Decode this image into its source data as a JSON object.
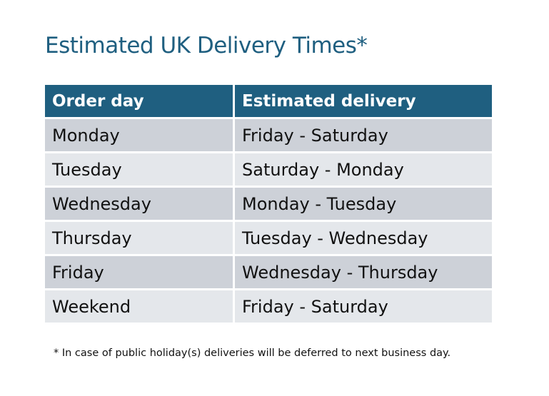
{
  "title": "Estimated UK Delivery Times*",
  "table": {
    "headers": [
      "Order day",
      "Estimated delivery"
    ],
    "rows": [
      [
        "Monday",
        "Friday - Saturday"
      ],
      [
        "Tuesday",
        "Saturday - Monday"
      ],
      [
        "Wednesday",
        "Monday - Tuesday"
      ],
      [
        "Thursday",
        "Tuesday - Wednesday"
      ],
      [
        "Friday",
        "Wednesday - Thursday"
      ],
      [
        "Weekend",
        "Friday - Saturday"
      ]
    ]
  },
  "footnote": "* In case of public holiday(s) deliveries will be deferred to next business day.",
  "colors": {
    "header": "#1f5f80",
    "row_dark": "#cdd1d8",
    "row_light": "#e4e7eb"
  }
}
